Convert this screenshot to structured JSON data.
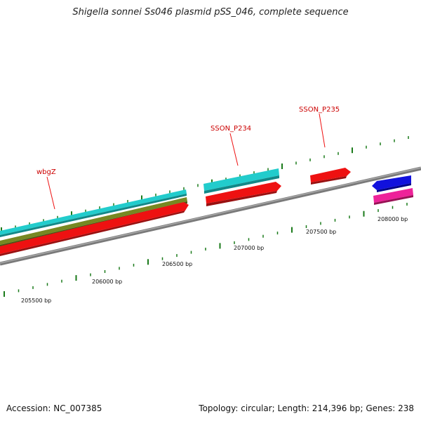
{
  "title": "Shigella sonnei Ss046 plasmid pSS_046, complete sequence",
  "footer": {
    "accession": "Accession: NC_007385",
    "topology": "Topology: circular; Length: 214,396 bp; Genes: 238"
  },
  "bp_labels": [
    "205500 bp",
    "206000 bp",
    "206500 bp",
    "207000 bp",
    "207500 bp",
    "208000 bp"
  ],
  "gene_labels": [
    "wbgZ",
    "SSON_P234",
    "SSON_P235"
  ],
  "colors": {
    "backbone": "#808080",
    "tick": "#1a7a1a",
    "red_feature": "#ee1111",
    "cyan_feature": "#22cccc",
    "olive_feature": "#778822",
    "blue_feature": "#1111dd",
    "magenta_feature": "#ee2299",
    "label": "#cc0000"
  }
}
